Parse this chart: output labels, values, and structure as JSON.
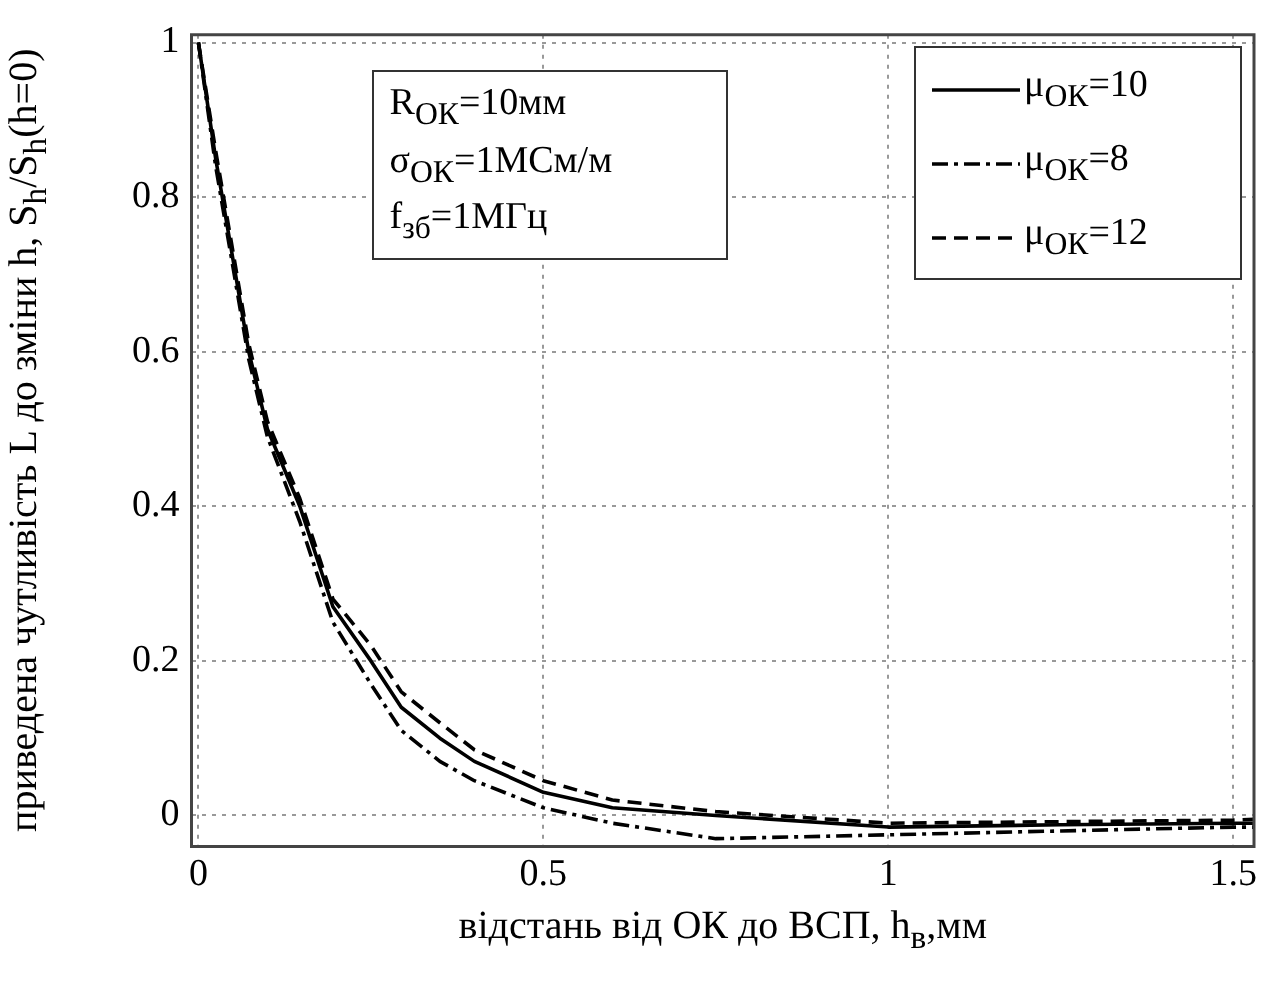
{
  "chart_data": {
    "type": "line",
    "xlabel": "відстань від ОК до ВСП, h$_{в}$,мм",
    "ylabel": "приведена чутливість L до зміни h, S$_{h}$/S$_{h}$(h=0)",
    "annotations": [
      "R$_{ОК}$=10мм",
      "σ$_{ОК}$=1МСм/м",
      "f$_{зб}$=1МГц"
    ],
    "x": [
      0,
      0.025,
      0.05,
      0.073,
      0.1,
      0.147,
      0.195,
      0.25,
      0.294,
      0.35,
      0.4,
      0.5,
      0.6,
      0.75,
      1,
      1.25,
      1.5,
      1.53
    ],
    "series": [
      {
        "name": "μ$_{ОК}$=10",
        "color": "#000000",
        "line_style": "solid",
        "values": [
          1,
          0.85,
          0.72,
          0.6,
          0.5,
          0.4,
          0.27,
          0.2,
          0.14,
          0.1,
          0.07,
          0.03,
          0.01,
          0,
          -0.015,
          -0.012,
          -0.01,
          -0.01
        ]
      },
      {
        "name": "μ$_{ОК}$=8",
        "color": "#000000",
        "line_style": "dashdot",
        "values": [
          1,
          0.84,
          0.71,
          0.59,
          0.49,
          0.38,
          0.25,
          0.17,
          0.11,
          0.07,
          0.045,
          0.01,
          -0.01,
          -0.03,
          -0.025,
          -0.02,
          -0.015,
          -0.015
        ]
      },
      {
        "name": "μ$_{ОК}$=12",
        "color": "#000000",
        "line_style": "dashed",
        "values": [
          1,
          0.86,
          0.73,
          0.61,
          0.51,
          0.41,
          0.28,
          0.22,
          0.16,
          0.12,
          0.085,
          0.045,
          0.02,
          0.005,
          -0.01,
          -0.008,
          -0.006,
          -0.005
        ]
      }
    ],
    "xlim": [
      -0.01,
      1.53
    ],
    "ylim": [
      -0.04,
      1.01
    ],
    "xticks": [
      0,
      0.5,
      1,
      1.5
    ],
    "yticks": [
      0,
      0.2,
      0.4,
      0.6,
      0.8,
      1
    ],
    "grid": true,
    "legend": "top right",
    "marker": "none"
  }
}
